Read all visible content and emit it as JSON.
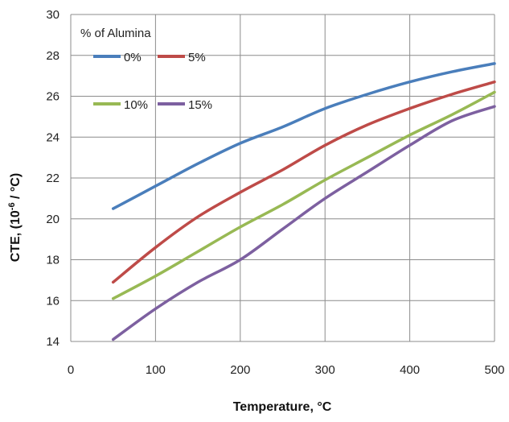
{
  "chart_data": {
    "type": "line",
    "title": "",
    "xlabel": "Temperature, °C",
    "ylabel_prefix": "CTE, (10",
    "ylabel_sup": "-6",
    "ylabel_suffix": " / °C)",
    "xlim": [
      0,
      500
    ],
    "ylim": [
      14,
      30
    ],
    "xticks": [
      0,
      100,
      200,
      300,
      400,
      500
    ],
    "yticks": [
      14,
      16,
      18,
      20,
      22,
      24,
      26,
      28,
      30
    ],
    "grid": "both",
    "legend": {
      "title": "% of Alumina",
      "placement": "top-left"
    },
    "series": [
      {
        "name": "0%",
        "color": "#4a7ebb",
        "x": [
          50,
          100,
          150,
          200,
          250,
          300,
          350,
          400,
          450,
          500
        ],
        "y": [
          20.5,
          21.6,
          22.7,
          23.7,
          24.5,
          25.4,
          26.1,
          26.7,
          27.2,
          27.6
        ]
      },
      {
        "name": "5%",
        "color": "#be4b48",
        "x": [
          50,
          100,
          150,
          200,
          250,
          300,
          350,
          400,
          450,
          500
        ],
        "y": [
          16.9,
          18.6,
          20.1,
          21.3,
          22.4,
          23.6,
          24.6,
          25.4,
          26.1,
          26.7
        ]
      },
      {
        "name": "10%",
        "color": "#98b954",
        "x": [
          50,
          100,
          150,
          200,
          250,
          300,
          350,
          400,
          450,
          500
        ],
        "y": [
          16.1,
          17.2,
          18.4,
          19.6,
          20.7,
          21.9,
          23.0,
          24.1,
          25.1,
          26.2
        ]
      },
      {
        "name": "15%",
        "color": "#7d60a0",
        "x": [
          50,
          100,
          150,
          200,
          250,
          300,
          350,
          400,
          450,
          500
        ],
        "y": [
          14.1,
          15.6,
          16.9,
          18.0,
          19.5,
          21.0,
          22.3,
          23.6,
          24.8,
          25.5
        ]
      }
    ]
  }
}
